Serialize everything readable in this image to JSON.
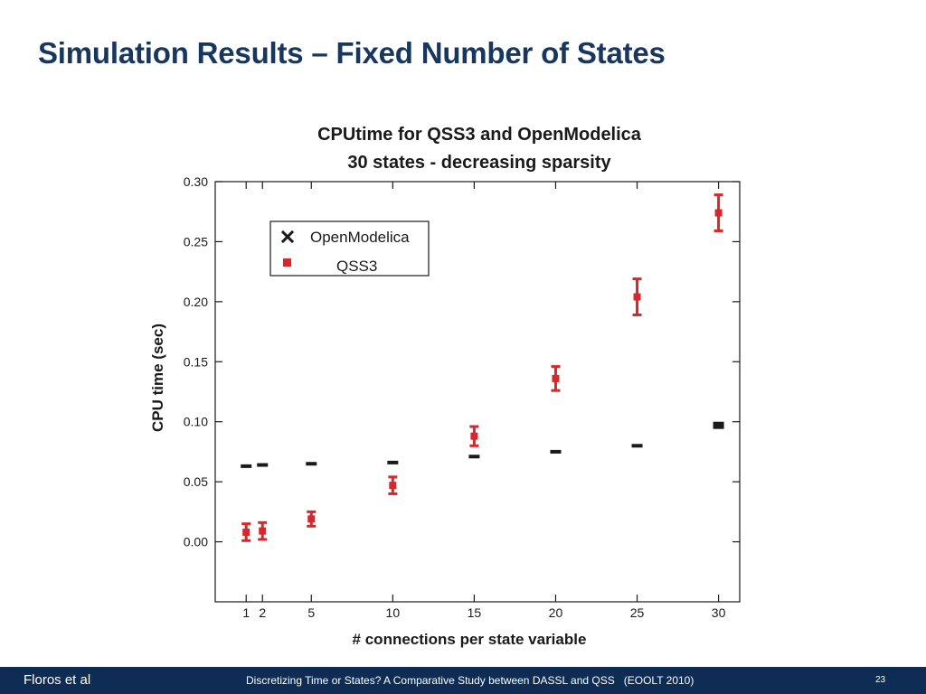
{
  "slide": {
    "title": "Simulation Results – Fixed Number of States"
  },
  "footer": {
    "left": "Floros et al",
    "center": "Discretizing Time or States? A Comparative Study between DASSL and QSS   (EOOLT 2010)",
    "page_number": "23",
    "background": "#0f2c54"
  },
  "chart_data": {
    "type": "scatter",
    "title": [
      "CPUtime for QSS3 and OpenModelica",
      "30 states - decreasing sparsity"
    ],
    "xlabel": "# connections per state variable",
    "ylabel": "CPU time (sec)",
    "xlim": [
      -0.9,
      31.3
    ],
    "ylim": [
      -0.05,
      0.3
    ],
    "x_ticks": [
      1,
      2,
      5,
      10,
      15,
      20,
      25,
      30
    ],
    "x_tick_labels": [
      "1",
      "2",
      "5",
      "10",
      "15",
      "20",
      "25",
      "30"
    ],
    "y_ticks": [
      0.0,
      0.05,
      0.1,
      0.15,
      0.2,
      0.25,
      0.3
    ],
    "y_tick_labels": [
      "0.00",
      "0.05",
      "0.10",
      "0.15",
      "0.20",
      "0.25",
      "0.30"
    ],
    "grid": false,
    "legend_position": "top-left",
    "series": [
      {
        "name": "OpenModelica",
        "marker": "x",
        "color": "#1a1a1a",
        "x": [
          1,
          2,
          5,
          10,
          15,
          20,
          25,
          30
        ],
        "y": [
          0.063,
          0.064,
          0.065,
          0.066,
          0.071,
          0.075,
          0.08,
          0.097
        ],
        "err": [
          0.001,
          0.001,
          0.001,
          0.001,
          0.001,
          0.001,
          0.001,
          0.003
        ]
      },
      {
        "name": "QSS3",
        "marker": "square",
        "color": "#d9262b",
        "x": [
          1,
          2,
          5,
          10,
          15,
          20,
          25,
          30
        ],
        "y": [
          0.008,
          0.009,
          0.019,
          0.047,
          0.088,
          0.136,
          0.204,
          0.274
        ],
        "err": [
          0.007,
          0.007,
          0.006,
          0.007,
          0.008,
          0.01,
          0.015,
          0.015
        ]
      }
    ]
  }
}
